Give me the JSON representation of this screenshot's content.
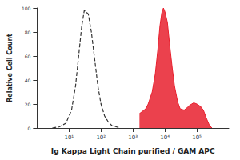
{
  "chart_data": {
    "type": "line",
    "x_label": "Ig Kappa Light Chain purified / GAM APC",
    "y_label": "Relative Cell Count",
    "log": "x",
    "xlim": [
      1,
      1000000
    ],
    "xticks": [
      {
        "value": 10,
        "label": "10¹"
      },
      {
        "value": 100,
        "label": "10²"
      },
      {
        "value": 1000,
        "label": "10³"
      },
      {
        "value": 10000,
        "label": "10⁴"
      },
      {
        "value": 100000,
        "label": "10⁵"
      }
    ],
    "ylim": [
      0,
      100
    ],
    "yticks": [
      0,
      20,
      40,
      60,
      80,
      100
    ],
    "grid": false,
    "x": [
      3,
      5,
      8,
      12,
      16,
      20,
      25,
      30,
      40,
      50,
      65,
      80,
      100,
      130,
      170,
      220,
      300,
      400,
      550,
      700,
      900,
      1200,
      1500,
      1600,
      2000,
      2500,
      3000,
      4000,
      5000,
      6000,
      7000,
      8000,
      9000,
      10000,
      12000,
      14000,
      17000,
      20000,
      25000,
      30000,
      40000,
      50000,
      60000,
      80000,
      100000,
      130000,
      160000,
      200000,
      250000,
      300000
    ],
    "series": [
      {
        "color": "#333333",
        "line_style": "dashed",
        "type": "line",
        "values": [
          0,
          1,
          4,
          15,
          35,
          60,
          85,
          98,
          95,
          80,
          55,
          35,
          20,
          10,
          5,
          2,
          1,
          0,
          null,
          null,
          null,
          null,
          null,
          null,
          null,
          null,
          null,
          null,
          null,
          null,
          null,
          null,
          null,
          null,
          null,
          null,
          null,
          null,
          null,
          null,
          null,
          null,
          null,
          null,
          null,
          null,
          null,
          null,
          null,
          null
        ]
      },
      {
        "color": "#e8202e",
        "line_style": "solid",
        "type": "area",
        "values": [
          null,
          null,
          null,
          null,
          null,
          null,
          null,
          null,
          null,
          null,
          null,
          null,
          null,
          null,
          null,
          null,
          null,
          null,
          null,
          null,
          null,
          null,
          null,
          12,
          14,
          16,
          20,
          30,
          45,
          65,
          85,
          96,
          100,
          97,
          88,
          70,
          50,
          35,
          22,
          16,
          15,
          17,
          19,
          21,
          20,
          18,
          15,
          8,
          2,
          0
        ]
      }
    ]
  }
}
